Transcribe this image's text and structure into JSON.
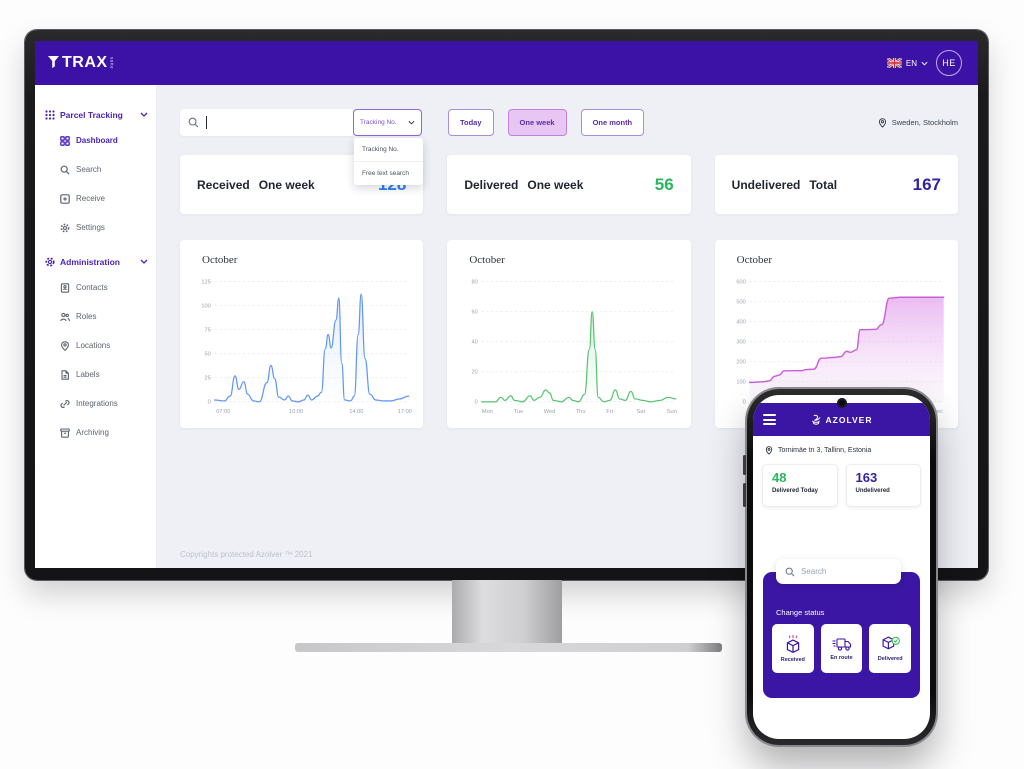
{
  "colors": {
    "brand_purple": "#3c12a6",
    "stat_blue": "#2d7ff9",
    "stat_green": "#27b85c",
    "stat_indigo": "#33239f",
    "selected_pill_bg": "#e7c6f3"
  },
  "desktop": {
    "header": {
      "logo_text": "TRAX",
      "logo_suffix": "suite",
      "language": "EN",
      "avatar_initials": "HE"
    },
    "sidebar": {
      "sections": [
        {
          "label": "Parcel Tracking",
          "items": [
            {
              "label": "Dashboard"
            },
            {
              "label": "Search"
            },
            {
              "label": "Receive"
            },
            {
              "label": "Settings"
            }
          ]
        },
        {
          "label": "Administration",
          "items": [
            {
              "label": "Contacts"
            },
            {
              "label": "Roles"
            },
            {
              "label": "Locations"
            },
            {
              "label": "Labels"
            },
            {
              "label": "Integrations"
            },
            {
              "label": "Archiving"
            }
          ]
        }
      ]
    },
    "toolbar": {
      "search_value": "",
      "search_type": "Tracking No.",
      "dropdown_options": [
        "Tracking No.",
        "Free text search"
      ],
      "period_buttons": [
        {
          "label": "Today"
        },
        {
          "label": "One week"
        },
        {
          "label": "One month"
        }
      ],
      "selected_period": "One week",
      "location": "Sweden, Stockholm"
    },
    "stats": [
      {
        "title": "Received",
        "period": "One week",
        "value": "128",
        "color": "#2d7ff9"
      },
      {
        "title": "Delivered",
        "period": "One week",
        "value": "56",
        "color": "#27b85c"
      },
      {
        "title": "Undelivered",
        "period": "Total",
        "value": "167",
        "color": "#33239f"
      }
    ],
    "footer": "Copyrights protected Azolver ™ 2021"
  },
  "phone": {
    "app_name": "AZOLVER",
    "address": "Tornimäe tn 3, Tallinn, Estonia",
    "stats": [
      {
        "value": "48",
        "label": "Delivered Today",
        "color": "#27b85c"
      },
      {
        "value": "163",
        "label": "Undelivered",
        "color": "#33239f"
      }
    ],
    "search_placeholder": "Search",
    "change_status": {
      "title": "Change status",
      "actions": [
        "Received",
        "En route",
        "Delivered"
      ]
    }
  },
  "chart_data": [
    {
      "type": "line",
      "title": "October",
      "color": "#6096f5",
      "fill": "blue-grad",
      "xlabel": "time of day",
      "ylabel": "",
      "ylim": [
        0,
        125
      ],
      "yticks": [
        0,
        25,
        50,
        75,
        100,
        125
      ],
      "grid": true,
      "legend": "none",
      "xticks": [
        {
          "label": "07:00",
          "x": 0.045
        },
        {
          "label": "10:00",
          "x": 0.42
        },
        {
          "label": "14:00",
          "x": 0.73
        },
        {
          "label": "17:00",
          "x": 0.98
        }
      ],
      "points": [
        [
          0,
          2
        ],
        [
          0.05,
          1
        ],
        [
          0.08,
          6
        ],
        [
          0.105,
          27
        ],
        [
          0.125,
          13
        ],
        [
          0.15,
          21
        ],
        [
          0.17,
          8
        ],
        [
          0.2,
          1
        ],
        [
          0.23,
          0
        ],
        [
          0.27,
          20
        ],
        [
          0.29,
          38
        ],
        [
          0.31,
          24
        ],
        [
          0.33,
          5
        ],
        [
          0.36,
          2
        ],
        [
          0.38,
          6
        ],
        [
          0.4,
          1
        ],
        [
          0.43,
          0
        ],
        [
          0.46,
          2
        ],
        [
          0.48,
          7
        ],
        [
          0.5,
          2
        ],
        [
          0.53,
          6
        ],
        [
          0.55,
          10
        ],
        [
          0.57,
          55
        ],
        [
          0.585,
          70
        ],
        [
          0.6,
          56
        ],
        [
          0.625,
          85
        ],
        [
          0.64,
          108
        ],
        [
          0.655,
          40
        ],
        [
          0.67,
          2
        ],
        [
          0.7,
          1
        ],
        [
          0.72,
          6
        ],
        [
          0.74,
          70
        ],
        [
          0.755,
          112
        ],
        [
          0.775,
          45
        ],
        [
          0.8,
          8
        ],
        [
          0.83,
          2
        ],
        [
          0.87,
          1
        ],
        [
          0.91,
          1
        ],
        [
          0.95,
          3
        ],
        [
          1,
          6
        ]
      ]
    },
    {
      "type": "line",
      "title": "October",
      "color": "#57c46f",
      "fill": "green-grad",
      "xlabel": "day of week",
      "ylabel": "",
      "ylim": [
        0,
        80
      ],
      "yticks": [
        0,
        20,
        40,
        60,
        80
      ],
      "grid": true,
      "legend": "none",
      "xticks": [
        {
          "label": "Mon",
          "x": 0.03
        },
        {
          "label": "Tue",
          "x": 0.19
        },
        {
          "label": "Wed",
          "x": 0.35
        },
        {
          "label": "Thu",
          "x": 0.51
        },
        {
          "label": "Fri",
          "x": 0.66
        },
        {
          "label": "Sat",
          "x": 0.82
        },
        {
          "label": "Sun",
          "x": 0.98
        }
      ],
      "points": [
        [
          0,
          0
        ],
        [
          0.07,
          0
        ],
        [
          0.1,
          3
        ],
        [
          0.12,
          1
        ],
        [
          0.15,
          4
        ],
        [
          0.17,
          1
        ],
        [
          0.21,
          0
        ],
        [
          0.25,
          4
        ],
        [
          0.27,
          1
        ],
        [
          0.3,
          3
        ],
        [
          0.33,
          8
        ],
        [
          0.35,
          6
        ],
        [
          0.37,
          1
        ],
        [
          0.41,
          0
        ],
        [
          0.45,
          3
        ],
        [
          0.47,
          1
        ],
        [
          0.5,
          0
        ],
        [
          0.53,
          5
        ],
        [
          0.555,
          35
        ],
        [
          0.57,
          60
        ],
        [
          0.585,
          35
        ],
        [
          0.6,
          3
        ],
        [
          0.63,
          0
        ],
        [
          0.66,
          1
        ],
        [
          0.69,
          8
        ],
        [
          0.71,
          2
        ],
        [
          0.74,
          1
        ],
        [
          0.77,
          7
        ],
        [
          0.79,
          2
        ],
        [
          0.83,
          1
        ],
        [
          0.87,
          0
        ],
        [
          0.92,
          1
        ],
        [
          0.96,
          3
        ],
        [
          1,
          2
        ]
      ]
    },
    {
      "type": "area",
      "title": "October",
      "color": "#c95fd8",
      "fill": "pink-grad",
      "xlabel": "",
      "ylabel": "",
      "ylim": [
        0,
        600
      ],
      "yticks": [
        0,
        100,
        200,
        300,
        400,
        500,
        600
      ],
      "grid": true,
      "legend": "none",
      "xticks": [
        {
          "label": "Dec",
          "x": 0.97
        }
      ],
      "points": [
        [
          0,
          97
        ],
        [
          0.07,
          100
        ],
        [
          0.1,
          105
        ],
        [
          0.13,
          128
        ],
        [
          0.15,
          133
        ],
        [
          0.18,
          155
        ],
        [
          0.27,
          156
        ],
        [
          0.29,
          161
        ],
        [
          0.33,
          163
        ],
        [
          0.37,
          218
        ],
        [
          0.44,
          222
        ],
        [
          0.47,
          226
        ],
        [
          0.5,
          252
        ],
        [
          0.52,
          247
        ],
        [
          0.55,
          260
        ],
        [
          0.57,
          360
        ],
        [
          0.65,
          362
        ],
        [
          0.68,
          385
        ],
        [
          0.72,
          518
        ],
        [
          0.78,
          522
        ],
        [
          1,
          522
        ]
      ]
    }
  ]
}
